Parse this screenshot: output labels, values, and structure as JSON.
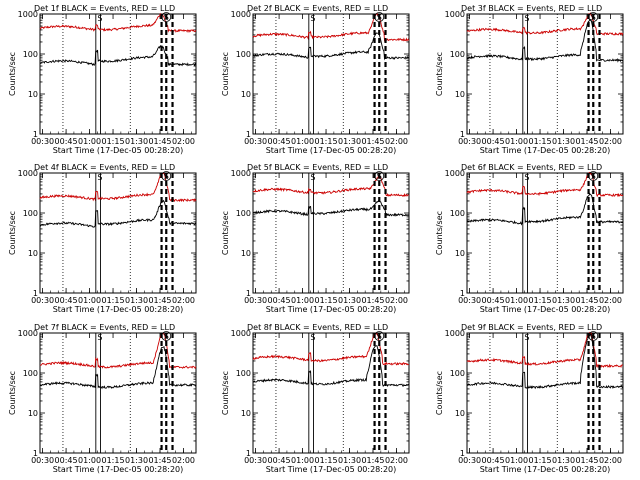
{
  "figure": {
    "xlabel": "Start Time (17-Dec-05 00:28:20)",
    "ylabel": "Counts/sec",
    "x_tick_labels": [
      "00:30",
      "00:45",
      "01:00",
      "01:15",
      "01:30",
      "01:45",
      "02:00"
    ],
    "y_tick_labels": [
      "1",
      "10",
      "100",
      "1000"
    ],
    "colors": {
      "events": "#000000",
      "lld": "#cc0000"
    }
  },
  "chart_data": [
    {
      "type": "line",
      "title": "Det 1f BLACK = Events, RED = LLD",
      "flag_label": "S",
      "x_range": [
        "00:28:20",
        "02:08:00"
      ],
      "y_scale": "log",
      "ylim": [
        1,
        1000
      ],
      "x_tick_values": [
        "00:30",
        "00:45",
        "01:00",
        "01:15",
        "01:30",
        "01:45",
        "02:00"
      ],
      "dotted_vlines": [
        "00:43",
        "01:26"
      ],
      "solid_vlines": [
        "01:04",
        "01:07"
      ],
      "dashed_vlines": [
        "01:46",
        "01:49",
        "01:53"
      ],
      "series": [
        {
          "baseline": 60,
          "bump_start": "01:05",
          "bump_level": 75,
          "peak_time": "01:46",
          "peak": 160,
          "after": 55,
          "spike": 120
        },
        {
          "baseline": 440,
          "bump_start": "01:05",
          "bump_level": 460,
          "peak_time": "01:46",
          "peak": 1000,
          "after": 380,
          "spike": 520
        }
      ]
    },
    {
      "type": "line",
      "title": "Det 2f BLACK = Events, RED = LLD",
      "flag_label": "S",
      "x_range": [
        "00:28:20",
        "02:08:00"
      ],
      "y_scale": "log",
      "ylim": [
        1,
        1000
      ],
      "x_tick_values": [
        "00:30",
        "00:45",
        "01:00",
        "01:15",
        "01:30",
        "01:45",
        "02:00"
      ],
      "dotted_vlines": [
        "00:43",
        "01:26"
      ],
      "solid_vlines": [
        "01:04",
        "01:07"
      ],
      "dashed_vlines": [
        "01:46",
        "01:49",
        "01:53"
      ],
      "series": [
        {
          "baseline": 90,
          "bump_start": "01:05",
          "bump_level": 100,
          "peak_time": "01:48",
          "peak": 350,
          "after": 80,
          "spike": 140
        },
        {
          "baseline": 280,
          "bump_start": "01:05",
          "bump_level": 300,
          "peak_time": "01:48",
          "peak": 1000,
          "after": 230,
          "spike": 340
        }
      ]
    },
    {
      "type": "line",
      "title": "Det 3f BLACK = Events, RED = LLD",
      "flag_label": "S",
      "x_range": [
        "00:28:20",
        "02:08:00"
      ],
      "y_scale": "log",
      "ylim": [
        1,
        1000
      ],
      "x_tick_values": [
        "00:30",
        "00:45",
        "01:00",
        "01:15",
        "01:30",
        "01:45",
        "02:00"
      ],
      "dotted_vlines": [
        "00:43",
        "01:26"
      ],
      "solid_vlines": [
        "01:04",
        "01:07"
      ],
      "dashed_vlines": [
        "01:46",
        "01:49",
        "01:53"
      ],
      "series": [
        {
          "baseline": 80,
          "bump_start": "01:05",
          "bump_level": 85,
          "peak_time": "01:47",
          "peak": 700,
          "after": 70,
          "spike": 140
        },
        {
          "baseline": 370,
          "bump_start": "01:05",
          "bump_level": 380,
          "peak_time": "01:47",
          "peak": 1000,
          "after": 320,
          "spike": 450
        }
      ]
    },
    {
      "type": "line",
      "title": "Det 4f BLACK = Events, RED = LLD",
      "flag_label": "S",
      "x_range": [
        "00:28:20",
        "02:08:00"
      ],
      "y_scale": "log",
      "ylim": [
        1,
        1000
      ],
      "x_tick_values": [
        "00:30",
        "00:45",
        "01:00",
        "01:15",
        "01:30",
        "01:45",
        "02:00"
      ],
      "dotted_vlines": [
        "00:43",
        "01:26"
      ],
      "solid_vlines": [
        "01:04",
        "01:07"
      ],
      "dashed_vlines": [
        "01:46",
        "01:49",
        "01:53"
      ],
      "series": [
        {
          "baseline": 50,
          "bump_start": "01:05",
          "bump_level": 60,
          "peak_time": "01:47",
          "peak": 200,
          "after": 55,
          "spike": 110
        },
        {
          "baseline": 240,
          "bump_start": "01:05",
          "bump_level": 260,
          "peak_time": "01:47",
          "peak": 1000,
          "after": 210,
          "spike": 330
        }
      ]
    },
    {
      "type": "line",
      "title": "Det 5f BLACK = Events, RED = LLD",
      "flag_label": "S",
      "x_range": [
        "00:28:20",
        "02:08:00"
      ],
      "y_scale": "log",
      "ylim": [
        1,
        1000
      ],
      "x_tick_values": [
        "00:30",
        "00:45",
        "01:00",
        "01:15",
        "01:30",
        "01:45",
        "02:00"
      ],
      "dotted_vlines": [
        "00:43",
        "01:26"
      ],
      "solid_vlines": [
        "01:04",
        "01:07"
      ],
      "dashed_vlines": [
        "01:46",
        "01:49",
        "01:53"
      ],
      "series": [
        {
          "baseline": 100,
          "bump_start": "01:05",
          "bump_level": 110,
          "peak_time": "01:49",
          "peak": 200,
          "after": 90,
          "spike": 140
        },
        {
          "baseline": 350,
          "bump_start": "01:05",
          "bump_level": 360,
          "peak_time": "01:49",
          "peak": 800,
          "after": 280,
          "spike": 390
        }
      ]
    },
    {
      "type": "line",
      "title": "Det 6f BLACK = Events, RED = LLD",
      "flag_label": "S",
      "x_range": [
        "00:28:20",
        "02:08:00"
      ],
      "y_scale": "log",
      "ylim": [
        1,
        1000
      ],
      "x_tick_values": [
        "00:30",
        "00:45",
        "01:00",
        "01:15",
        "01:30",
        "01:45",
        "02:00"
      ],
      "dotted_vlines": [
        "00:43",
        "01:26"
      ],
      "solid_vlines": [
        "01:04",
        "01:07"
      ],
      "dashed_vlines": [
        "01:46",
        "01:49",
        "01:53"
      ],
      "series": [
        {
          "baseline": 60,
          "bump_start": "01:05",
          "bump_level": 70,
          "peak_time": "01:47",
          "peak": 300,
          "after": 60,
          "spike": 130
        },
        {
          "baseline": 330,
          "bump_start": "01:05",
          "bump_level": 340,
          "peak_time": "01:47",
          "peak": 1000,
          "after": 280,
          "spike": 440
        }
      ]
    },
    {
      "type": "line",
      "title": "Det 7f BLACK = Events, RED = LLD",
      "flag_label": "S",
      "x_range": [
        "00:28:20",
        "02:08:00"
      ],
      "y_scale": "log",
      "ylim": [
        1,
        1000
      ],
      "x_tick_values": [
        "00:30",
        "00:45",
        "01:00",
        "01:15",
        "01:30",
        "01:45",
        "02:00"
      ],
      "dotted_vlines": [
        "00:43",
        "01:26"
      ],
      "solid_vlines": [
        "01:04",
        "01:07"
      ],
      "dashed_vlines": [
        "01:46",
        "01:49",
        "01:53"
      ],
      "series": [
        {
          "baseline": 50,
          "bump_start": "01:05",
          "bump_level": 50,
          "peak_time": "01:47",
          "peak": 450,
          "after": 50,
          "spike": 90
        },
        {
          "baseline": 160,
          "bump_start": "01:05",
          "bump_level": 160,
          "peak_time": "01:47",
          "peak": 1000,
          "after": 140,
          "spike": 220
        }
      ]
    },
    {
      "type": "line",
      "title": "Det 8f BLACK = Events, RED = LLD",
      "flag_label": "S",
      "x_range": [
        "00:28:20",
        "02:08:00"
      ],
      "y_scale": "log",
      "ylim": [
        1,
        1000
      ],
      "x_tick_values": [
        "00:30",
        "00:45",
        "01:00",
        "01:15",
        "01:30",
        "01:45",
        "02:00"
      ],
      "dotted_vlines": [
        "00:43",
        "01:26"
      ],
      "solid_vlines": [
        "01:04",
        "01:07"
      ],
      "dashed_vlines": [
        "01:46",
        "01:49",
        "01:53"
      ],
      "series": [
        {
          "baseline": 60,
          "bump_start": "01:05",
          "bump_level": 60,
          "peak_time": "01:47",
          "peak": 500,
          "after": 50,
          "spike": 110
        },
        {
          "baseline": 230,
          "bump_start": "01:05",
          "bump_level": 230,
          "peak_time": "01:47",
          "peak": 1000,
          "after": 170,
          "spike": 300
        }
      ]
    },
    {
      "type": "line",
      "title": "Det 9f BLACK = Events, RED = LLD",
      "flag_label": "S",
      "x_range": [
        "00:28:20",
        "02:08:00"
      ],
      "y_scale": "log",
      "ylim": [
        1,
        1000
      ],
      "x_tick_values": [
        "00:30",
        "00:45",
        "01:00",
        "01:15",
        "01:30",
        "01:45",
        "02:00"
      ],
      "dotted_vlines": [
        "00:43",
        "01:26"
      ],
      "solid_vlines": [
        "01:04",
        "01:07"
      ],
      "dashed_vlines": [
        "01:46",
        "01:49",
        "01:53"
      ],
      "series": [
        {
          "baseline": 50,
          "bump_start": "01:05",
          "bump_level": 50,
          "peak_time": "01:47",
          "peak": 900,
          "after": 45,
          "spike": 100
        },
        {
          "baseline": 190,
          "bump_start": "01:05",
          "bump_level": 190,
          "peak_time": "01:47",
          "peak": 1000,
          "after": 150,
          "spike": 260
        }
      ]
    }
  ]
}
